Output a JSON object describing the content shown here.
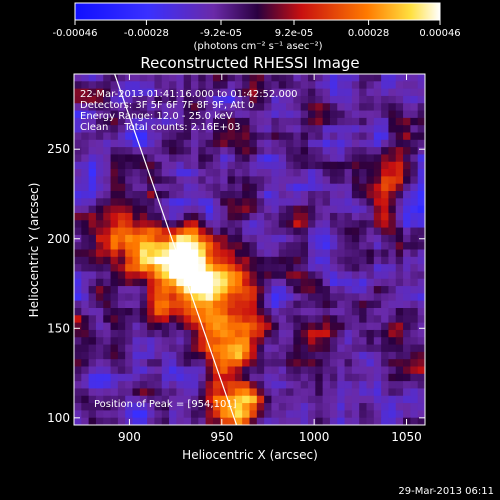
{
  "chart_data": {
    "type": "heatmap",
    "title": "Reconstructed RHESSI Image",
    "xlabel": "Heliocentric X (arcsec)",
    "ylabel": "Heliocentric Y (arcsec)",
    "xlim": [
      870,
      1060
    ],
    "ylim": [
      96,
      292
    ],
    "xticks": [
      900,
      950,
      1000,
      1050
    ],
    "yticks": [
      100,
      150,
      200,
      250
    ],
    "colorbar": {
      "ticks": [
        "-0.00046",
        "-0.00028",
        "-9.2e-05",
        "9.2e-05",
        "0.00028",
        "0.00046"
      ],
      "tick_values": [
        -0.00046,
        -0.00028,
        -9.2e-05,
        9.2e-05,
        0.00028,
        0.00046
      ],
      "range": [
        -0.00046,
        0.00046
      ],
      "unit_label": "(photons cm⁻² s⁻¹ asec⁻²)",
      "colors": [
        "#1010ff",
        "#6a2aa8",
        "#3a0050",
        "#c81010",
        "#ff7a00",
        "#ffffff"
      ]
    },
    "info_lines": [
      "22-Mar-2013 01:41:16.000 to 01:42:52.000",
      "Detectors: 3F 5F 6F 7F 8F 9F, Att 0",
      "Energy Range: 12.0 - 25.0 keV",
      "Clean     Total counts: 2.16E+03"
    ],
    "peak_label": "Position of Peak = [954,101]",
    "peak": [
      954,
      101
    ],
    "limb_line": [
      [
        892,
        292
      ],
      [
        958,
        96
      ]
    ],
    "bright_sources": [
      {
        "x": 940,
        "y": 173,
        "amp": 0.95,
        "sx": 18,
        "sy": 15
      },
      {
        "x": 958,
        "y": 108,
        "amp": 0.9,
        "sx": 10,
        "sy": 9
      },
      {
        "x": 925,
        "y": 192,
        "amp": 0.7,
        "sx": 12,
        "sy": 10
      },
      {
        "x": 955,
        "y": 140,
        "amp": 0.6,
        "sx": 10,
        "sy": 12
      },
      {
        "x": 900,
        "y": 200,
        "amp": 0.5,
        "sx": 12,
        "sy": 12
      },
      {
        "x": 1040,
        "y": 230,
        "amp": 0.45,
        "sx": 8,
        "sy": 18
      },
      {
        "x": 1005,
        "y": 140,
        "amp": 0.35,
        "sx": 8,
        "sy": 8
      }
    ]
  },
  "footer": {
    "timestamp": "29-Mar-2013 06:11"
  }
}
